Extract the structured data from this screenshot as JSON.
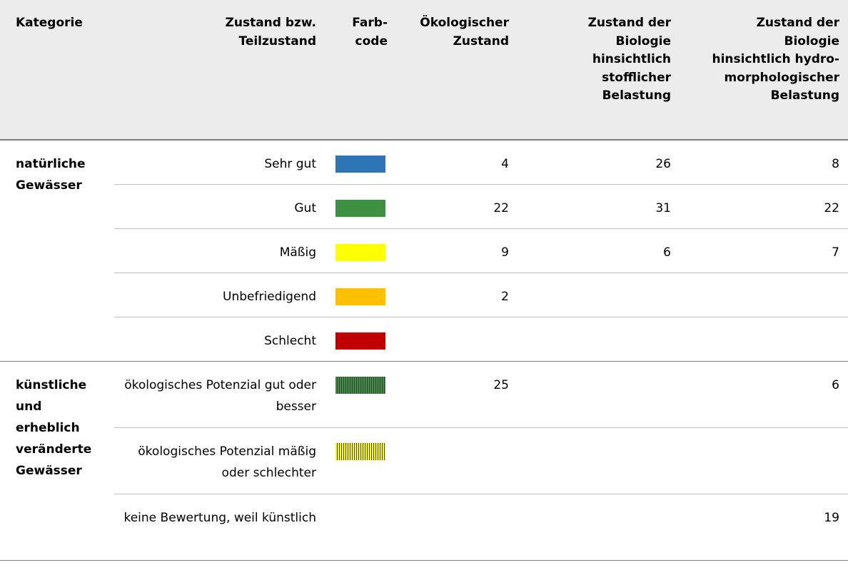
{
  "table": {
    "header": [
      "Kategorie",
      "Zustand bzw.\nTeilzustand",
      "Farb-\ncode",
      "Ökologischer\nZustand",
      "Zustand der\nBiologie\nhinsichtlich\nstofflicher\nBelastung",
      "Zustand der\nBiologie\nhinsichtlich hydro-\nmorphologischer\nBelastung"
    ],
    "groups": [
      {
        "category": "natürliche Gewässer",
        "rows": [
          {
            "state": "Sehr gut",
            "swatch": {
              "color": "#2e75b6"
            },
            "values": [
              4,
              26,
              8
            ]
          },
          {
            "state": "Gut",
            "swatch": {
              "color": "#3f9142"
            },
            "values": [
              22,
              31,
              22
            ]
          },
          {
            "state": "Mäßig",
            "swatch": {
              "color": "#ffff00"
            },
            "values": [
              9,
              6,
              7
            ]
          },
          {
            "state": "Unbefriedigend",
            "swatch": {
              "color": "#ffc000"
            },
            "values": [
              2,
              null,
              null
            ]
          },
          {
            "state": "Schlecht",
            "swatch": {
              "color": "#c00000"
            },
            "values": [
              null,
              null,
              null
            ]
          }
        ]
      },
      {
        "category": "künstliche und erheblich veränderte Gewässer",
        "rows": [
          {
            "state": "ökologisches Potenzial gut oder besser",
            "swatch": {
              "color": "#3f9142",
              "pattern": "striped"
            },
            "values": [
              25,
              null,
              6
            ]
          },
          {
            "state": "ökologisches Potenzial mäßig oder schlechter",
            "swatch": {
              "color": "#ffff00",
              "pattern": "striped"
            },
            "values": [
              null,
              null,
              null
            ]
          },
          {
            "state": "keine Bewertung, weil künstlich",
            "swatch": null,
            "values": [
              null,
              null,
              19
            ]
          }
        ]
      }
    ]
  }
}
